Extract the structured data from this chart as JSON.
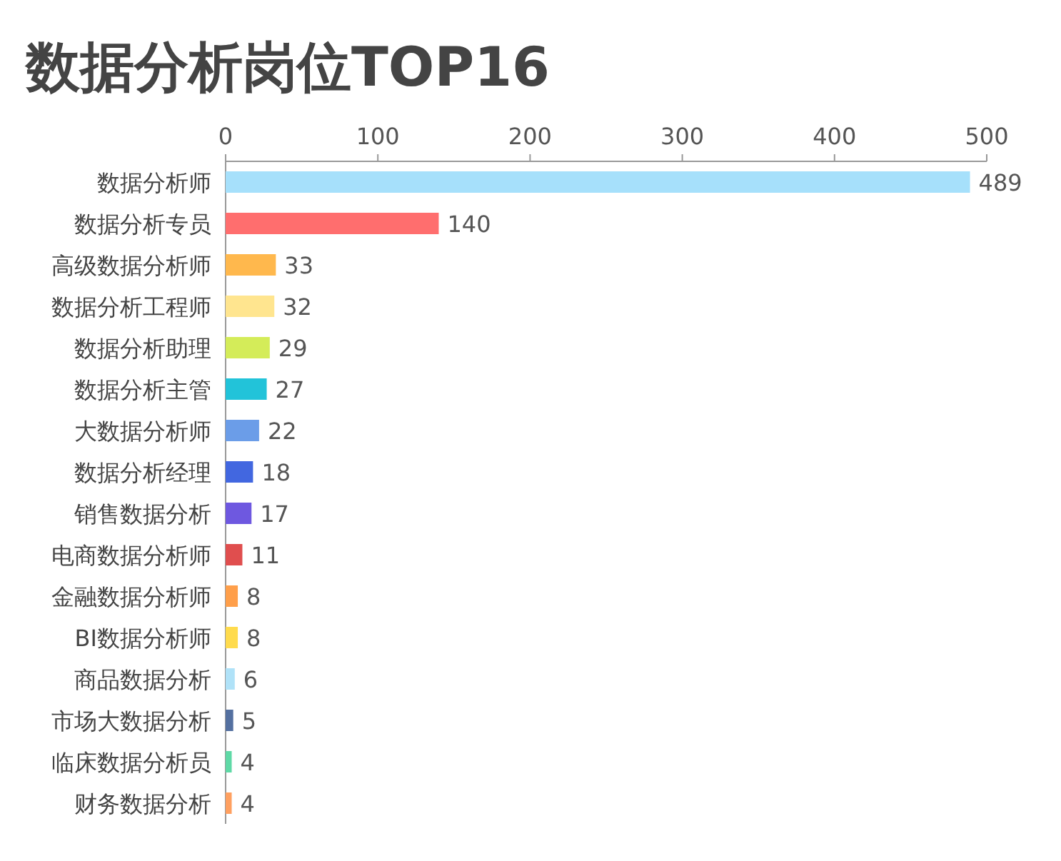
{
  "chart_data": {
    "type": "bar",
    "orientation": "horizontal",
    "title": "数据分析岗位TOP16",
    "categories": [
      "数据分析师",
      "数据分析专员",
      "高级数据分析师",
      "数据分析工程师",
      "数据分析助理",
      "数据分析主管",
      "大数据分析师",
      "数据分析经理",
      "销售数据分析",
      "电商数据分析师",
      "金融数据分析师",
      "BI数据分析师",
      "商品数据分析",
      "市场大数据分析",
      "临床数据分析员",
      "财务数据分析"
    ],
    "values": [
      489,
      140,
      33,
      32,
      29,
      27,
      22,
      18,
      17,
      11,
      8,
      8,
      6,
      5,
      4,
      4
    ],
    "colors": [
      "#a6e0fb",
      "#ff6e6e",
      "#ffb84d",
      "#ffe58f",
      "#d4ec59",
      "#22c3d9",
      "#6b9de8",
      "#4267e0",
      "#6e58e0",
      "#e04e4e",
      "#ff9f4a",
      "#ffdb4d",
      "#b0e2f8",
      "#5470a0",
      "#5fd9a6",
      "#ffa060"
    ],
    "xlim": [
      0,
      500
    ],
    "xticks": [
      0,
      100,
      200,
      300,
      400,
      500
    ],
    "data_labels": true
  }
}
